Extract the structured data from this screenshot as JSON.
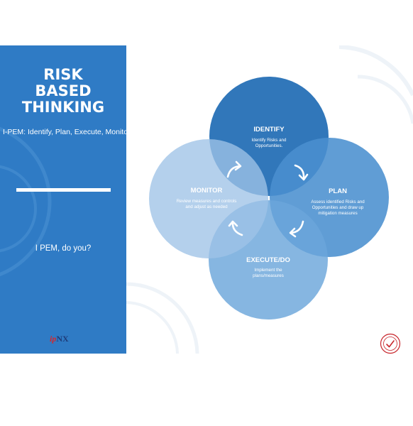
{
  "title": {
    "line1": "RISK",
    "line2": "BASED",
    "line3": "THINKING"
  },
  "subtitle": "I-PEM: Identify, Plan, Execute, Monitor",
  "tagline": "I PEM, do you?",
  "logo": {
    "part1": "ip",
    "part2": "NX"
  },
  "colors": {
    "panel": "#2f7bc5",
    "identify": "#2670b6",
    "plan": "#4a8fcf",
    "execute": "#6ba6db",
    "monitor": "#9fc3e7"
  },
  "cycle": {
    "identify": {
      "title": "IDENTIFY",
      "line1": "Identify Risks and",
      "line2": "Opportunities."
    },
    "plan": {
      "title": "PLAN",
      "line1": "Assess identified Risks and",
      "line2": "Opportunities and draw up",
      "line3": "mitigation measures"
    },
    "execute": {
      "title": "EXECUTE/DO",
      "line1": "Implement the",
      "line2": "plans/measures"
    },
    "monitor": {
      "title": "MONITOR",
      "line1": "Review measures and controls",
      "line2": "and adjust as needed"
    }
  },
  "icons": [
    "arrow-right-curved-icon",
    "arrow-down-curved-icon",
    "arrow-left-curved-icon",
    "arrow-up-curved-icon",
    "certification-seal-icon"
  ]
}
